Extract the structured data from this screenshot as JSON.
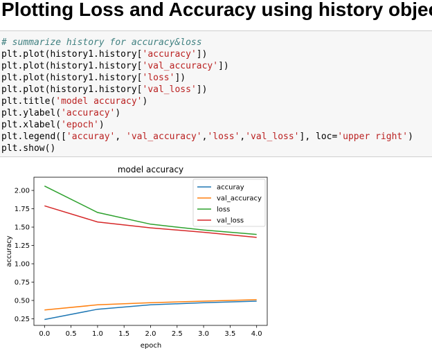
{
  "heading": "Plotting Loss and Accuracy using history object",
  "code_lines": [
    [
      {
        "t": "# summarize history for accuracy&loss",
        "k": "c"
      }
    ],
    [
      {
        "t": "plt.plot(history1.history["
      },
      {
        "t": "'accuracy'",
        "k": "s"
      },
      {
        "t": "])"
      }
    ],
    [
      {
        "t": "plt.plot(history1.history["
      },
      {
        "t": "'val_accuracy'",
        "k": "s"
      },
      {
        "t": "])"
      }
    ],
    [
      {
        "t": "plt.plot(history1.history["
      },
      {
        "t": "'loss'",
        "k": "s"
      },
      {
        "t": "])"
      }
    ],
    [
      {
        "t": "plt.plot(history1.history["
      },
      {
        "t": "'val_loss'",
        "k": "s"
      },
      {
        "t": "])"
      }
    ],
    [
      {
        "t": "plt.title("
      },
      {
        "t": "'model accuracy'",
        "k": "s"
      },
      {
        "t": ")"
      }
    ],
    [
      {
        "t": "plt.ylabel("
      },
      {
        "t": "'accuracy'",
        "k": "s"
      },
      {
        "t": ")"
      }
    ],
    [
      {
        "t": "plt.xlabel("
      },
      {
        "t": "'epoch'",
        "k": "s"
      },
      {
        "t": ")"
      }
    ],
    [
      {
        "t": "plt.legend(["
      },
      {
        "t": "'accuray'",
        "k": "s"
      },
      {
        "t": ", "
      },
      {
        "t": "'val_accuracy'",
        "k": "s"
      },
      {
        "t": ","
      },
      {
        "t": "'loss'",
        "k": "s"
      },
      {
        "t": ","
      },
      {
        "t": "'val_loss'",
        "k": "s"
      },
      {
        "t": "], loc="
      },
      {
        "t": "'upper right'",
        "k": "s"
      },
      {
        "t": ")"
      }
    ],
    [
      {
        "t": "plt.show()"
      }
    ]
  ],
  "chart_data": {
    "type": "line",
    "title": "model accuracy",
    "xlabel": "epoch",
    "ylabel": "accuracy",
    "x": [
      0,
      1,
      2,
      3,
      4
    ],
    "xlim": [
      -0.2,
      4.2
    ],
    "ylim": [
      0.16,
      2.18
    ],
    "xticks": [
      "0.0",
      "0.5",
      "1.0",
      "1.5",
      "2.0",
      "2.5",
      "3.0",
      "3.5",
      "4.0"
    ],
    "yticks": [
      "0.25",
      "0.50",
      "0.75",
      "1.00",
      "1.25",
      "1.50",
      "1.75",
      "2.00"
    ],
    "legend_position": "upper right",
    "grid": false,
    "series": [
      {
        "name": "accuray",
        "color": "#1f77b4",
        "values": [
          0.24,
          0.38,
          0.44,
          0.47,
          0.49
        ]
      },
      {
        "name": "val_accuracy",
        "color": "#ff7f0e",
        "values": [
          0.37,
          0.44,
          0.47,
          0.49,
          0.51
        ]
      },
      {
        "name": "loss",
        "color": "#2ca02c",
        "values": [
          2.06,
          1.7,
          1.54,
          1.46,
          1.4
        ]
      },
      {
        "name": "val_loss",
        "color": "#d62728",
        "values": [
          1.79,
          1.57,
          1.49,
          1.43,
          1.36
        ]
      }
    ]
  }
}
